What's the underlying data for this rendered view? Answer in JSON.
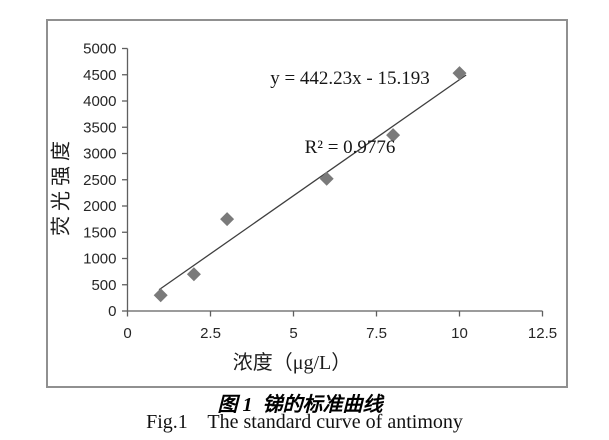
{
  "annotation": {
    "equation": "y = 442.23x - 15.193",
    "r_squared": "R² = 0.9776"
  },
  "axes": {
    "x_title": "浓度（μg/L）",
    "y_title": "荧光强度"
  },
  "caption": {
    "zh": "图 1  锑的标准曲线",
    "en": "Fig.1    The standard curve of antimony"
  },
  "chart_data": {
    "type": "scatter",
    "title": "",
    "x": [
      1,
      2,
      3,
      6,
      8,
      10
    ],
    "y": [
      300,
      700,
      1750,
      2520,
      3350,
      4530
    ],
    "xlabel": "浓度（μg/L）",
    "ylabel": "荧光强度",
    "xlim": [
      0,
      12.5
    ],
    "xtick_step": 2.5,
    "xtick_labels": [
      "0",
      "2.5",
      "5",
      "7.5",
      "10",
      "12.5"
    ],
    "ylim": [
      0,
      5000
    ],
    "ytick_step": 500,
    "ytick_labels": [
      "0",
      "500",
      "1000",
      "1500",
      "2000",
      "2500",
      "3000",
      "3500",
      "4000",
      "4500",
      "5000"
    ],
    "grid": false,
    "legend": false,
    "marker": "diamond",
    "trendline": {
      "kind": "linear",
      "slope": 442.23,
      "intercept": -15.193,
      "equation": "y = 442.23x - 15.193",
      "r2": 0.9776,
      "x_range": [
        0.95,
        10.2
      ]
    },
    "colors": {
      "marker": "#7a7a7a",
      "trendline": "#3f3f3f",
      "axis": "#5f5f5f",
      "tick_label": "#262626",
      "frame": "#909090"
    }
  }
}
